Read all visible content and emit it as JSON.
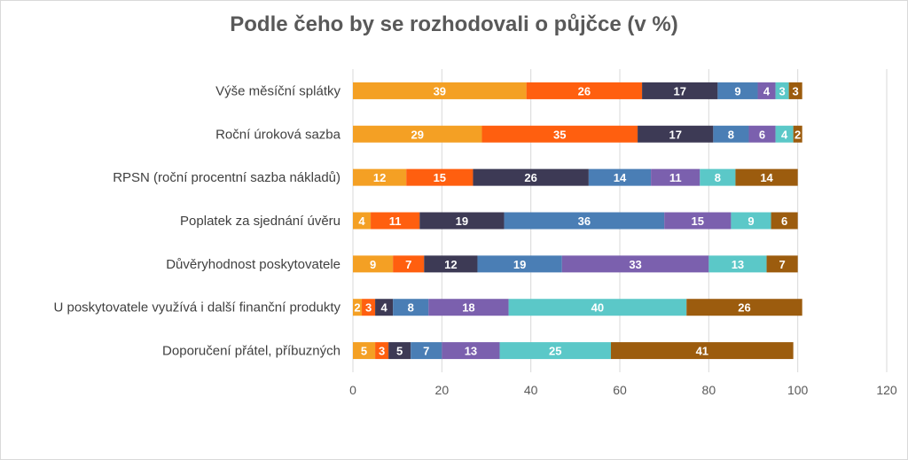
{
  "chart_data": {
    "type": "bar",
    "orientation": "horizontal",
    "stacked": true,
    "title": "Podle čeho by se rozhodovali o půjčce (v %)",
    "xlim": [
      0,
      120
    ],
    "xticks": [
      0,
      20,
      40,
      60,
      80,
      100,
      120
    ],
    "grid": true,
    "legend": "none",
    "categories": [
      "Výše měsíční splátky",
      "Roční úroková sazba",
      "RPSN (roční procentní sazba nákladů)",
      "Poplatek za sjednání úvěru",
      "Důvěryhodnost poskytovatele",
      "U poskytovatele využívá i další finanční produkty",
      "Doporučení přátel, příbuzných"
    ],
    "series": [
      {
        "color": "#F4A024",
        "values": [
          39,
          29,
          12,
          4,
          9,
          2,
          5
        ]
      },
      {
        "color": "#FF5F0F",
        "values": [
          26,
          35,
          15,
          11,
          7,
          3,
          3
        ]
      },
      {
        "color": "#3D3A55",
        "values": [
          17,
          17,
          26,
          19,
          12,
          4,
          5
        ]
      },
      {
        "color": "#4A7EB5",
        "values": [
          9,
          8,
          14,
          36,
          19,
          8,
          7
        ]
      },
      {
        "color": "#7B60AE",
        "values": [
          4,
          6,
          11,
          15,
          33,
          18,
          13
        ]
      },
      {
        "color": "#5BC8C8",
        "values": [
          3,
          4,
          8,
          9,
          13,
          40,
          25
        ]
      },
      {
        "color": "#9C5C0E",
        "values": [
          3,
          2,
          14,
          6,
          7,
          26,
          41
        ]
      }
    ]
  }
}
